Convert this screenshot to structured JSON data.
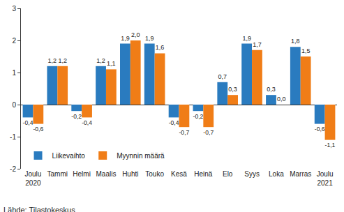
{
  "chart_data": {
    "type": "bar",
    "categories": [
      "Joulu\n2020",
      "Tammi",
      "Helmi",
      "Maalis",
      "Huhti",
      "Touko",
      "Kesä",
      "Heinä",
      "Elo",
      "Syys",
      "Loka",
      "Marras",
      "Joulu\n2021"
    ],
    "series": [
      {
        "name": "Liikevaihto",
        "color": "#2a7bbf",
        "values": [
          -0.4,
          1.2,
          -0.2,
          1.2,
          1.9,
          1.9,
          -0.4,
          -0.2,
          0.7,
          1.9,
          0.3,
          1.8,
          -0.6
        ],
        "value_labels": [
          "-0,4",
          "1,2",
          "-0,2",
          "1,2",
          "1,9",
          "1,9",
          "-0,4",
          "-0,2",
          "0,7",
          "1,9",
          "0,3",
          "1,8",
          "-0,6"
        ]
      },
      {
        "name": "Myynnin määrä",
        "color": "#f07d17",
        "values": [
          -0.6,
          1.2,
          -0.4,
          1.1,
          2.0,
          1.6,
          -0.7,
          -0.7,
          0.3,
          1.7,
          0.0,
          1.5,
          -1.1
        ],
        "value_labels": [
          "-0,6",
          "1,2",
          "-0,4",
          "1,1",
          "2,0",
          "1,6",
          "-0,7",
          "-0,7",
          "0,3",
          "1,7",
          "0,0",
          "1,5",
          "-1,1"
        ]
      }
    ],
    "ylim": [
      -2,
      3
    ],
    "yticks": [
      -2,
      -1,
      0,
      1,
      2,
      3
    ],
    "grid": false,
    "legend": "bottom-left",
    "data_labels": true,
    "source": "Lähde: Tilastokeskus"
  }
}
